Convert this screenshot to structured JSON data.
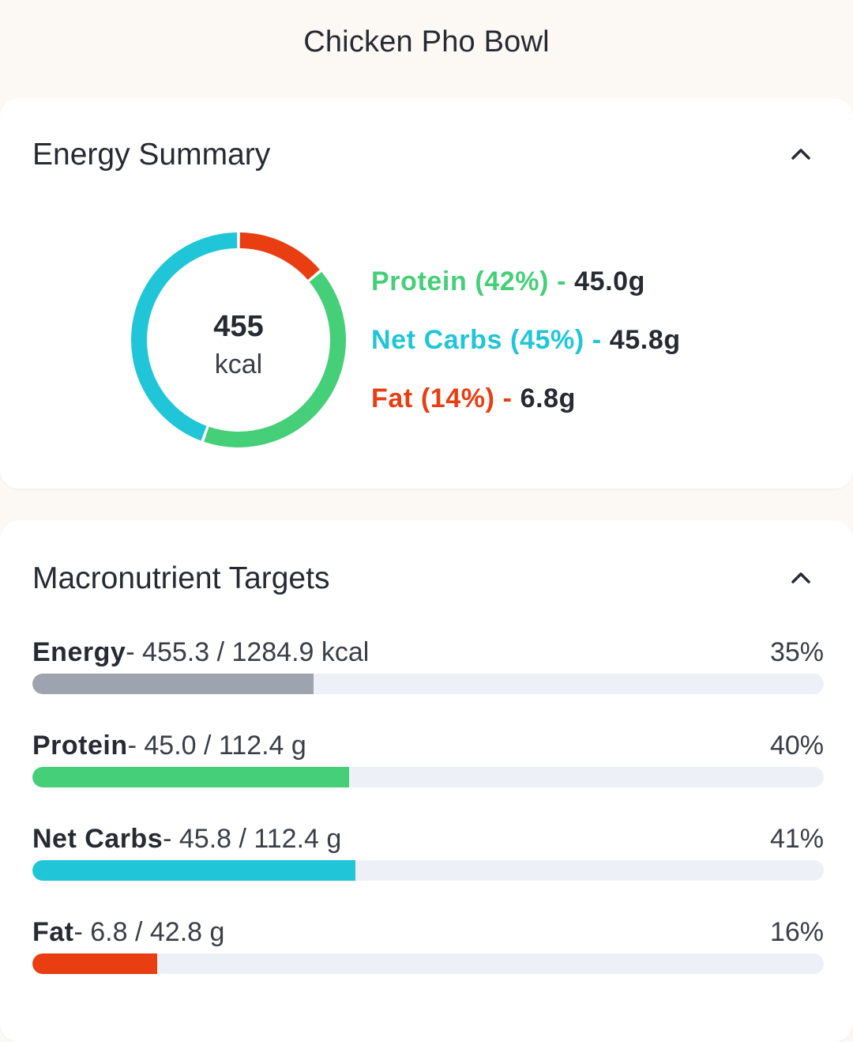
{
  "header": {
    "title": "Chicken Pho Bowl"
  },
  "energy_summary": {
    "title": "Energy Summary",
    "collapse_icon": "chevron-up-icon",
    "total_value": "455",
    "total_unit": "kcal",
    "segments": [
      {
        "key": "fat",
        "label": "Fat (14%) - ",
        "grams": "6.8g",
        "percent": 14,
        "color": "#e83e12"
      },
      {
        "key": "protein",
        "label": "Protein (42%) - ",
        "grams": "45.0g",
        "percent": 42,
        "color": "#45cf78"
      },
      {
        "key": "carbs",
        "label": "Net Carbs (45%) - ",
        "grams": "45.8g",
        "percent": 45,
        "color": "#20c6d8"
      }
    ],
    "legend": [
      {
        "label": "Protein (42%) - ",
        "grams": "45.0g",
        "color": "#45cf78"
      },
      {
        "label": "Net Carbs (45%) - ",
        "grams": "45.8g",
        "color": "#20c6d8"
      },
      {
        "label": "Fat (14%) - ",
        "grams": "6.8g",
        "color": "#e83e12"
      }
    ]
  },
  "macro_targets": {
    "title": "Macronutrient Targets",
    "collapse_icon": "chevron-up-icon",
    "rows": [
      {
        "name": "Energy",
        "detail": "- 455.3 / 1284.9 kcal",
        "percent_label": "35%",
        "fraction": 0.355,
        "color": "#9ea3b0"
      },
      {
        "name": "Protein",
        "detail": "- 45.0 / 112.4 g",
        "percent_label": "40%",
        "fraction": 0.4,
        "color": "#45cf78"
      },
      {
        "name": "Net Carbs",
        "detail": "- 45.8 / 112.4 g",
        "percent_label": "41%",
        "fraction": 0.408,
        "color": "#20c6d8"
      },
      {
        "name": "Fat",
        "detail": "- 6.8 / 42.8 g",
        "percent_label": "16%",
        "fraction": 0.158,
        "color": "#e83e12"
      }
    ],
    "track_color": "#eef0f7"
  }
}
